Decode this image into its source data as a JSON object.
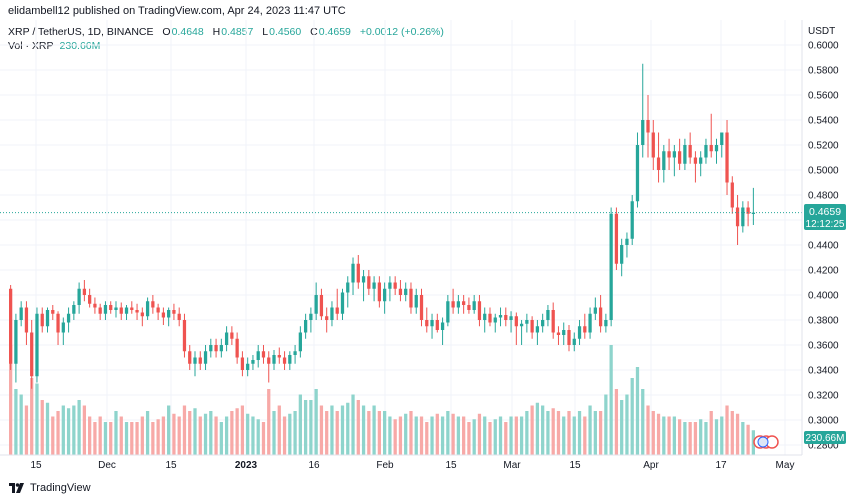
{
  "header": {
    "publish_line": "elidambell12 published on TradingView.com, Apr 24, 2023 11:47 UTC"
  },
  "legend": {
    "symbol": "XRP / TetherUS, 1D, BINANCE",
    "open_label": "O",
    "open": "0.4648",
    "high_label": "H",
    "high": "0.4857",
    "low_label": "L",
    "low": "0.4560",
    "close_label": "C",
    "close": "0.4659",
    "change": "+0.0012 (+0.26%)",
    "volume_label": "Vol · XRP",
    "volume": "230.66M"
  },
  "axis": {
    "currency": "USDT",
    "price_badge": "0.4659",
    "countdown": "12:12:25",
    "volume_badge": "230.66M"
  },
  "footer": {
    "brand": "TradingView"
  },
  "colors": {
    "up": "#26a69a",
    "down": "#ef5350",
    "vol_up": "#8ed4cc",
    "vol_down": "#f7a9a7",
    "grid": "#f0f3fa"
  },
  "chart_data": {
    "type": "candlestick",
    "y_axis": {
      "min": 0.28,
      "max": 0.6,
      "ticks": [
        "0.6000",
        "0.5800",
        "0.5600",
        "0.5400",
        "0.5200",
        "0.5000",
        "0.4800",
        "0.4600",
        "0.4400",
        "0.4200",
        "0.4000",
        "0.3800",
        "0.3600",
        "0.3400",
        "0.3200",
        "0.3000",
        "0.2800"
      ]
    },
    "x_axis": {
      "labels": [
        "15",
        "Dec",
        "15",
        "2023",
        "16",
        "Feb",
        "15",
        "Mar",
        "15",
        "Apr",
        "17",
        "May"
      ]
    },
    "last_price": 0.4659,
    "candles": [
      [
        0.405,
        0.408,
        0.34,
        0.345,
        200
      ],
      [
        0.345,
        0.385,
        0.33,
        0.38,
        120
      ],
      [
        0.38,
        0.395,
        0.375,
        0.39,
        110
      ],
      [
        0.39,
        0.395,
        0.36,
        0.37,
        90
      ],
      [
        0.37,
        0.38,
        0.325,
        0.335,
        140
      ],
      [
        0.335,
        0.39,
        0.33,
        0.385,
        130
      ],
      [
        0.385,
        0.39,
        0.37,
        0.375,
        100
      ],
      [
        0.375,
        0.39,
        0.37,
        0.388,
        95
      ],
      [
        0.388,
        0.392,
        0.38,
        0.385,
        70
      ],
      [
        0.385,
        0.387,
        0.36,
        0.37,
        80
      ],
      [
        0.37,
        0.382,
        0.36,
        0.378,
        90
      ],
      [
        0.378,
        0.39,
        0.37,
        0.385,
        85
      ],
      [
        0.385,
        0.395,
        0.38,
        0.392,
        90
      ],
      [
        0.392,
        0.41,
        0.385,
        0.405,
        100
      ],
      [
        0.405,
        0.412,
        0.395,
        0.4,
        90
      ],
      [
        0.4,
        0.405,
        0.39,
        0.393,
        70
      ],
      [
        0.393,
        0.398,
        0.385,
        0.39,
        60
      ],
      [
        0.39,
        0.393,
        0.38,
        0.385,
        70
      ],
      [
        0.385,
        0.395,
        0.38,
        0.392,
        60
      ],
      [
        0.392,
        0.395,
        0.385,
        0.388,
        60
      ],
      [
        0.388,
        0.395,
        0.382,
        0.39,
        80
      ],
      [
        0.39,
        0.394,
        0.38,
        0.385,
        70
      ],
      [
        0.385,
        0.392,
        0.38,
        0.39,
        60
      ],
      [
        0.39,
        0.395,
        0.385,
        0.388,
        60
      ],
      [
        0.388,
        0.393,
        0.38,
        0.386,
        60
      ],
      [
        0.386,
        0.39,
        0.375,
        0.383,
        70
      ],
      [
        0.383,
        0.398,
        0.38,
        0.395,
        80
      ],
      [
        0.395,
        0.4,
        0.385,
        0.39,
        60
      ],
      [
        0.39,
        0.393,
        0.38,
        0.386,
        65
      ],
      [
        0.386,
        0.39,
        0.376,
        0.382,
        70
      ],
      [
        0.382,
        0.39,
        0.375,
        0.388,
        90
      ],
      [
        0.388,
        0.393,
        0.38,
        0.385,
        75
      ],
      [
        0.385,
        0.39,
        0.375,
        0.38,
        70
      ],
      [
        0.38,
        0.385,
        0.35,
        0.355,
        90
      ],
      [
        0.355,
        0.36,
        0.34,
        0.345,
        80
      ],
      [
        0.345,
        0.355,
        0.335,
        0.35,
        85
      ],
      [
        0.35,
        0.355,
        0.34,
        0.345,
        70
      ],
      [
        0.345,
        0.36,
        0.34,
        0.355,
        75
      ],
      [
        0.355,
        0.365,
        0.35,
        0.36,
        80
      ],
      [
        0.36,
        0.365,
        0.35,
        0.355,
        70
      ],
      [
        0.355,
        0.365,
        0.35,
        0.36,
        60
      ],
      [
        0.36,
        0.375,
        0.355,
        0.37,
        70
      ],
      [
        0.37,
        0.375,
        0.36,
        0.365,
        80
      ],
      [
        0.365,
        0.37,
        0.345,
        0.35,
        85
      ],
      [
        0.35,
        0.355,
        0.335,
        0.34,
        90
      ],
      [
        0.34,
        0.35,
        0.335,
        0.345,
        75
      ],
      [
        0.345,
        0.352,
        0.34,
        0.348,
        70
      ],
      [
        0.348,
        0.36,
        0.342,
        0.355,
        65
      ],
      [
        0.355,
        0.36,
        0.345,
        0.35,
        60
      ],
      [
        0.35,
        0.355,
        0.33,
        0.345,
        120
      ],
      [
        0.345,
        0.356,
        0.34,
        0.352,
        80
      ],
      [
        0.352,
        0.358,
        0.345,
        0.35,
        90
      ],
      [
        0.35,
        0.355,
        0.34,
        0.345,
        70
      ],
      [
        0.345,
        0.355,
        0.34,
        0.352,
        75
      ],
      [
        0.352,
        0.36,
        0.345,
        0.355,
        80
      ],
      [
        0.355,
        0.375,
        0.35,
        0.37,
        110
      ],
      [
        0.37,
        0.385,
        0.365,
        0.38,
        100
      ],
      [
        0.38,
        0.39,
        0.37,
        0.385,
        100
      ],
      [
        0.385,
        0.41,
        0.38,
        0.4,
        120
      ],
      [
        0.4,
        0.405,
        0.38,
        0.383,
        90
      ],
      [
        0.383,
        0.39,
        0.37,
        0.38,
        80
      ],
      [
        0.38,
        0.395,
        0.375,
        0.39,
        90
      ],
      [
        0.39,
        0.405,
        0.38,
        0.385,
        80
      ],
      [
        0.385,
        0.405,
        0.38,
        0.402,
        90
      ],
      [
        0.402,
        0.415,
        0.39,
        0.41,
        95
      ],
      [
        0.41,
        0.43,
        0.4,
        0.425,
        110
      ],
      [
        0.425,
        0.432,
        0.405,
        0.41,
        100
      ],
      [
        0.41,
        0.42,
        0.395,
        0.415,
        90
      ],
      [
        0.415,
        0.42,
        0.4,
        0.405,
        80
      ],
      [
        0.405,
        0.415,
        0.395,
        0.41,
        90
      ],
      [
        0.41,
        0.415,
        0.39,
        0.395,
        80
      ],
      [
        0.395,
        0.41,
        0.385,
        0.405,
        80
      ],
      [
        0.405,
        0.415,
        0.395,
        0.41,
        70
      ],
      [
        0.41,
        0.415,
        0.4,
        0.405,
        65
      ],
      [
        0.405,
        0.412,
        0.395,
        0.4,
        70
      ],
      [
        0.4,
        0.41,
        0.395,
        0.405,
        75
      ],
      [
        0.405,
        0.41,
        0.385,
        0.39,
        80
      ],
      [
        0.39,
        0.405,
        0.385,
        0.4,
        70
      ],
      [
        0.4,
        0.405,
        0.375,
        0.38,
        70
      ],
      [
        0.38,
        0.39,
        0.37,
        0.375,
        60
      ],
      [
        0.375,
        0.385,
        0.365,
        0.38,
        70
      ],
      [
        0.38,
        0.385,
        0.37,
        0.372,
        75
      ],
      [
        0.372,
        0.382,
        0.36,
        0.378,
        70
      ],
      [
        0.378,
        0.4,
        0.375,
        0.395,
        80
      ],
      [
        0.395,
        0.405,
        0.385,
        0.39,
        75
      ],
      [
        0.39,
        0.4,
        0.385,
        0.395,
        70
      ],
      [
        0.395,
        0.4,
        0.385,
        0.392,
        70
      ],
      [
        0.392,
        0.398,
        0.385,
        0.388,
        60
      ],
      [
        0.388,
        0.4,
        0.385,
        0.395,
        65
      ],
      [
        0.395,
        0.4,
        0.375,
        0.38,
        75
      ],
      [
        0.38,
        0.39,
        0.37,
        0.385,
        70
      ],
      [
        0.385,
        0.39,
        0.375,
        0.378,
        60
      ],
      [
        0.378,
        0.385,
        0.37,
        0.382,
        65
      ],
      [
        0.382,
        0.39,
        0.375,
        0.384,
        70
      ],
      [
        0.384,
        0.39,
        0.375,
        0.38,
        60
      ],
      [
        0.38,
        0.387,
        0.37,
        0.383,
        70
      ],
      [
        0.383,
        0.386,
        0.36,
        0.375,
        70
      ],
      [
        0.375,
        0.38,
        0.36,
        0.377,
        70
      ],
      [
        0.377,
        0.385,
        0.37,
        0.38,
        80
      ],
      [
        0.38,
        0.383,
        0.365,
        0.37,
        90
      ],
      [
        0.37,
        0.38,
        0.36,
        0.375,
        95
      ],
      [
        0.375,
        0.385,
        0.37,
        0.38,
        90
      ],
      [
        0.38,
        0.392,
        0.375,
        0.388,
        80
      ],
      [
        0.388,
        0.394,
        0.365,
        0.37,
        85
      ],
      [
        0.37,
        0.375,
        0.36,
        0.368,
        80
      ],
      [
        0.368,
        0.378,
        0.36,
        0.372,
        70
      ],
      [
        0.372,
        0.376,
        0.355,
        0.36,
        80
      ],
      [
        0.36,
        0.37,
        0.355,
        0.365,
        70
      ],
      [
        0.365,
        0.38,
        0.36,
        0.375,
        80
      ],
      [
        0.375,
        0.385,
        0.365,
        0.37,
        70
      ],
      [
        0.37,
        0.39,
        0.365,
        0.385,
        90
      ],
      [
        0.385,
        0.398,
        0.38,
        0.39,
        80
      ],
      [
        0.39,
        0.4,
        0.37,
        0.375,
        80
      ],
      [
        0.375,
        0.385,
        0.37,
        0.38,
        110
      ],
      [
        0.38,
        0.47,
        0.375,
        0.465,
        200
      ],
      [
        0.465,
        0.47,
        0.42,
        0.425,
        120
      ],
      [
        0.425,
        0.445,
        0.415,
        0.44,
        100
      ],
      [
        0.44,
        0.45,
        0.43,
        0.445,
        110
      ],
      [
        0.445,
        0.48,
        0.44,
        0.475,
        140
      ],
      [
        0.475,
        0.53,
        0.47,
        0.52,
        160
      ],
      [
        0.52,
        0.585,
        0.51,
        0.54,
        120
      ],
      [
        0.54,
        0.56,
        0.51,
        0.53,
        90
      ],
      [
        0.53,
        0.54,
        0.5,
        0.51,
        80
      ],
      [
        0.51,
        0.53,
        0.49,
        0.5,
        75
      ],
      [
        0.5,
        0.52,
        0.49,
        0.515,
        70
      ],
      [
        0.515,
        0.525,
        0.5,
        0.51,
        70
      ],
      [
        0.51,
        0.52,
        0.495,
        0.515,
        70
      ],
      [
        0.515,
        0.525,
        0.5,
        0.505,
        65
      ],
      [
        0.505,
        0.525,
        0.5,
        0.52,
        60
      ],
      [
        0.52,
        0.53,
        0.505,
        0.51,
        60
      ],
      [
        0.51,
        0.515,
        0.49,
        0.505,
        60
      ],
      [
        0.505,
        0.515,
        0.495,
        0.51,
        65
      ],
      [
        0.51,
        0.525,
        0.505,
        0.52,
        60
      ],
      [
        0.52,
        0.545,
        0.51,
        0.515,
        80
      ],
      [
        0.515,
        0.525,
        0.505,
        0.52,
        65
      ],
      [
        0.52,
        0.53,
        0.51,
        0.53,
        70
      ],
      [
        0.53,
        0.54,
        0.48,
        0.49,
        90
      ],
      [
        0.49,
        0.495,
        0.465,
        0.47,
        80
      ],
      [
        0.47,
        0.48,
        0.44,
        0.455,
        75
      ],
      [
        0.455,
        0.475,
        0.45,
        0.47,
        60
      ],
      [
        0.47,
        0.475,
        0.455,
        0.465,
        55
      ],
      [
        0.4648,
        0.4857,
        0.456,
        0.4659,
        45
      ]
    ]
  }
}
